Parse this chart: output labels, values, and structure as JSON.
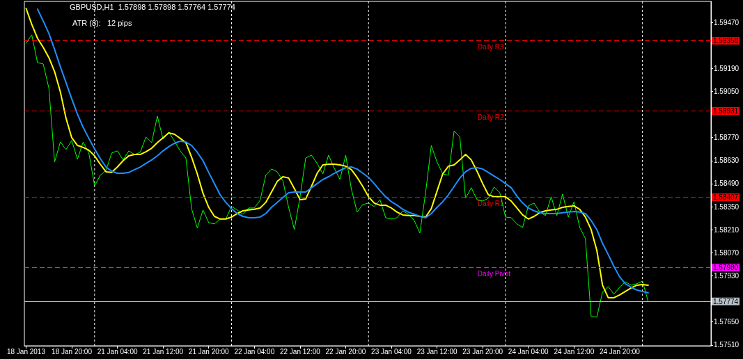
{
  "chart_data": {
    "type": "line",
    "title": "GBPUSD,H1  1.57898 1.57898 1.57764 1.57774",
    "subtitle": "ATR (8):   12 pips",
    "categories": [
      "18 Jan 2013",
      null,
      null,
      null,
      null,
      null,
      null,
      null,
      "18 Jan 20:00",
      null,
      null,
      null,
      null,
      null,
      null,
      null,
      "21 Jan 04:00",
      null,
      null,
      null,
      null,
      null,
      null,
      null,
      "21 Jan 12:00",
      null,
      null,
      null,
      null,
      null,
      null,
      null,
      "21 Jan 20:00",
      null,
      null,
      null,
      null,
      null,
      null,
      null,
      "22 Jan 04:00",
      null,
      null,
      null,
      null,
      null,
      null,
      null,
      "22 Jan 12:00",
      null,
      null,
      null,
      null,
      null,
      null,
      null,
      "22 Jan 20:00",
      null,
      null,
      null,
      null,
      null,
      null,
      null,
      "23 Jan 04:00",
      null,
      null,
      null,
      null,
      null,
      null,
      null,
      "23 Jan 12:00",
      null,
      null,
      null,
      null,
      null,
      null,
      null,
      "23 Jan 20:00",
      null,
      null,
      null,
      null,
      null,
      null,
      null,
      "24 Jan 04:00",
      null,
      null,
      null,
      null,
      null,
      null,
      null,
      "24 Jan 12:00",
      null,
      null,
      null,
      null,
      null,
      null,
      null,
      "24 Jan 20:00",
      null,
      null,
      null,
      null,
      null
    ],
    "series": [
      {
        "color": "#00ff00",
        "values": [
          1.59343,
          1.59394,
          1.59225,
          1.59217,
          1.59069,
          1.58621,
          1.58743,
          1.58697,
          1.58752,
          1.58638,
          1.58743,
          1.58676,
          1.58477,
          1.58541,
          1.5857,
          1.58676,
          1.58689,
          1.58634,
          1.58689,
          1.58667,
          1.5868,
          1.58773,
          1.58739,
          1.589,
          1.5876,
          1.58803,
          1.58748,
          1.58689,
          1.58646,
          1.58338,
          1.5822,
          1.5833,
          1.58253,
          1.58245,
          1.58275,
          1.58275,
          1.58351,
          1.5833,
          1.58304,
          1.58342,
          1.58342,
          1.58389,
          1.58541,
          1.58579,
          1.58562,
          1.58507,
          1.58346,
          1.58211,
          1.5841,
          1.58646,
          1.58663,
          1.58613,
          1.58549,
          1.58663,
          1.58583,
          1.58515,
          1.58663,
          1.58456,
          1.58317,
          1.58363,
          1.58372,
          1.58351,
          1.58393,
          1.58283,
          1.58275,
          1.58283,
          1.58325,
          1.58304,
          1.58266,
          1.5819,
          1.58435,
          1.58722,
          1.58621,
          1.58549,
          1.58541,
          1.58811,
          1.58773,
          1.58401,
          1.58465,
          1.58393,
          1.58384,
          1.58401,
          1.58469,
          1.58435,
          1.58287,
          1.58283,
          1.58245,
          1.58224,
          1.58355,
          1.58372,
          1.58317,
          1.58296,
          1.5841,
          1.58296,
          1.58427,
          1.58287,
          1.5838,
          1.58224,
          1.58156,
          1.57683,
          1.57679,
          1.57831,
          1.57865,
          1.57818,
          1.57861,
          1.57894,
          1.57873,
          1.57882,
          1.57898,
          1.57774
        ]
      },
      {
        "color": "#ffff00",
        "values": [
          1.59554,
          1.59457,
          1.59373,
          1.59318,
          1.59255,
          1.5917,
          1.59048,
          1.58887,
          1.58769,
          1.58722,
          1.5871,
          1.58693,
          1.58659,
          1.58608,
          1.58562,
          1.58558,
          1.58591,
          1.58629,
          1.58659,
          1.58667,
          1.58667,
          1.58684,
          1.58705,
          1.58739,
          1.58769,
          1.58798,
          1.5879,
          1.58765,
          1.58739,
          1.58651,
          1.58549,
          1.58431,
          1.58346,
          1.58291,
          1.58275,
          1.58275,
          1.58287,
          1.58308,
          1.58325,
          1.5833,
          1.58334,
          1.58342,
          1.58376,
          1.58439,
          1.58503,
          1.58532,
          1.58524,
          1.5846,
          1.58393,
          1.58397,
          1.58473,
          1.58553,
          1.58604,
          1.58608,
          1.58608,
          1.58604,
          1.58596,
          1.58575,
          1.58528,
          1.58473,
          1.5841,
          1.58372,
          1.58359,
          1.58359,
          1.58342,
          1.58317,
          1.583,
          1.58296,
          1.58296,
          1.58291,
          1.58287,
          1.58338,
          1.58444,
          1.58549,
          1.58596,
          1.58604,
          1.58634,
          1.58667,
          1.58634,
          1.58566,
          1.5849,
          1.58422,
          1.5841,
          1.5841,
          1.5841,
          1.58384,
          1.58342,
          1.583,
          1.58275,
          1.58291,
          1.58313,
          1.58325,
          1.5833,
          1.58334,
          1.58346,
          1.58351,
          1.58355,
          1.58334,
          1.58287,
          1.58211,
          1.58085,
          1.57873,
          1.57797,
          1.57797,
          1.57814,
          1.57835,
          1.57856,
          1.57873,
          1.57877,
          1.57873
        ]
      },
      {
        "color": "#1e90ff",
        "values": [
          null,
          null,
          1.5955,
          1.59478,
          1.59402,
          1.59305,
          1.592,
          1.59103,
          1.59005,
          1.58912,
          1.58832,
          1.58765,
          1.58701,
          1.58642,
          1.58591,
          1.58566,
          1.58553,
          1.58553,
          1.58558,
          1.58575,
          1.58591,
          1.58613,
          1.58634,
          1.58659,
          1.58689,
          1.58714,
          1.58735,
          1.58748,
          1.58743,
          1.58722,
          1.5868,
          1.58629,
          1.58558,
          1.5849,
          1.58422,
          1.58376,
          1.58338,
          1.58308,
          1.58291,
          1.58283,
          1.58283,
          1.58287,
          1.58308,
          1.58346,
          1.58376,
          1.58406,
          1.58435,
          1.58439,
          1.58439,
          1.58439,
          1.58465,
          1.5849,
          1.58515,
          1.58532,
          1.58553,
          1.5857,
          1.58587,
          1.58591,
          1.58579,
          1.58553,
          1.58528,
          1.5849,
          1.58448,
          1.5841,
          1.5838,
          1.58359,
          1.58334,
          1.58317,
          1.58304,
          1.58291,
          1.58283,
          1.58308,
          1.58346,
          1.5838,
          1.58422,
          1.58473,
          1.58524,
          1.58562,
          1.58583,
          1.58587,
          1.58579,
          1.58558,
          1.58536,
          1.58515,
          1.5849,
          1.58465,
          1.58414,
          1.58372,
          1.58342,
          1.58325,
          1.58313,
          1.58308,
          1.58308,
          1.58308,
          1.58313,
          1.58317,
          1.58321,
          1.58317,
          1.58308,
          1.58266,
          1.58211,
          1.58127,
          1.58059,
          1.57987,
          1.57924,
          1.57882,
          1.57861,
          1.57844,
          1.57835,
          1.57827
        ]
      }
    ],
    "ylim": [
      1.57505,
      1.59597
    ],
    "yticks": [
      {
        "value": 1.5751,
        "label": "1.57510"
      },
      {
        "value": 1.5765,
        "label": "1.57650"
      },
      {
        "value": 1.5793,
        "label": "1.57930"
      },
      {
        "value": 1.5807,
        "label": "1.58070"
      },
      {
        "value": 1.5821,
        "label": "1.58210"
      },
      {
        "value": 1.5835,
        "label": "1.58350"
      },
      {
        "value": 1.5849,
        "label": "1.58490"
      },
      {
        "value": 1.5863,
        "label": "1.58630"
      },
      {
        "value": 1.5877,
        "label": "1.58770"
      },
      {
        "value": 1.5905,
        "label": "1.59050"
      },
      {
        "value": 1.5919,
        "label": "1.59190"
      },
      {
        "value": 1.5947,
        "label": "1.59470"
      }
    ],
    "ref_lines": [
      {
        "axis": "y",
        "value": 1.59358,
        "label": "Daily R3",
        "color": "#ff0000",
        "line_style": "dashed"
      },
      {
        "axis": "y",
        "value": 1.58931,
        "label": "Daily R2",
        "color": "#ff0000",
        "line_style": "dashed"
      },
      {
        "axis": "y",
        "value": 1.58407,
        "label": "Daily R1",
        "color": "#ff0000",
        "line_style": "dashed"
      },
      {
        "axis": "y",
        "value": 1.5798,
        "label": "Daily Pivot",
        "color": "#ff00ff",
        "line_style": "dashed"
      },
      {
        "axis": "y",
        "value": 1.57774,
        "color": "#b8c0c8",
        "line_style": "solid"
      }
    ],
    "annotations": [
      "1.59358",
      "1.58931",
      "1.58407",
      "1.57980",
      "1.57774"
    ],
    "grid": "x",
    "marker": "none",
    "line_style": "solid"
  }
}
